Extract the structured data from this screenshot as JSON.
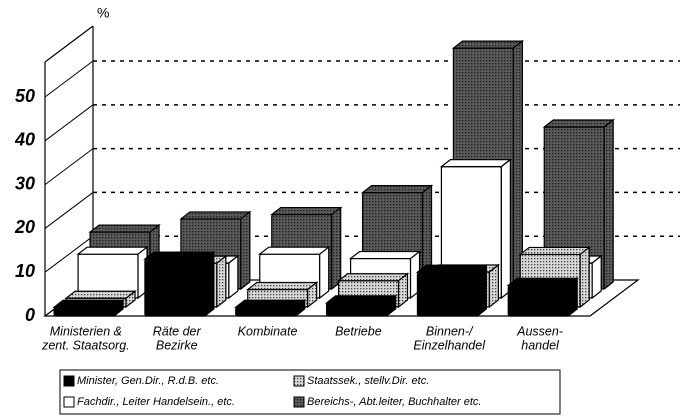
{
  "chart_data": {
    "type": "bar3d",
    "y_label": "%",
    "categories": [
      [
        "Ministerien &",
        "zent. Staatsorg."
      ],
      [
        "Räte der",
        "Bezirke"
      ],
      [
        "Kombinate"
      ],
      [
        "Betriebe"
      ],
      [
        "Binnen-/",
        "Einzelhandel"
      ],
      [
        "Aussen-",
        "handel"
      ]
    ],
    "series": [
      {
        "name": "Minister, Gen.Dir., R.d.B. etc.",
        "color": "#000000",
        "hatch": false,
        "values": [
          2,
          13,
          2,
          3,
          10,
          7
        ]
      },
      {
        "name": "Staatssek., stellv.Dir. etc.",
        "color": "#d8d8d8",
        "hatch": true,
        "values": [
          2,
          10,
          4,
          6,
          8,
          12
        ]
      },
      {
        "name": "Fachdir., Leiter Handelsein., etc.",
        "color": "#ffffff",
        "hatch": false,
        "values": [
          10,
          8,
          10,
          9,
          30,
          8
        ]
      },
      {
        "name": "Bereichs-, Abt.leiter, Buchhalter etc.",
        "color": "#5a5a5a",
        "hatch": true,
        "values": [
          13,
          16,
          17,
          22,
          55,
          37
        ]
      }
    ],
    "ylim": [
      0,
      58
    ],
    "yticks": [
      0,
      10,
      20,
      30,
      40,
      50
    ],
    "grid": true
  }
}
